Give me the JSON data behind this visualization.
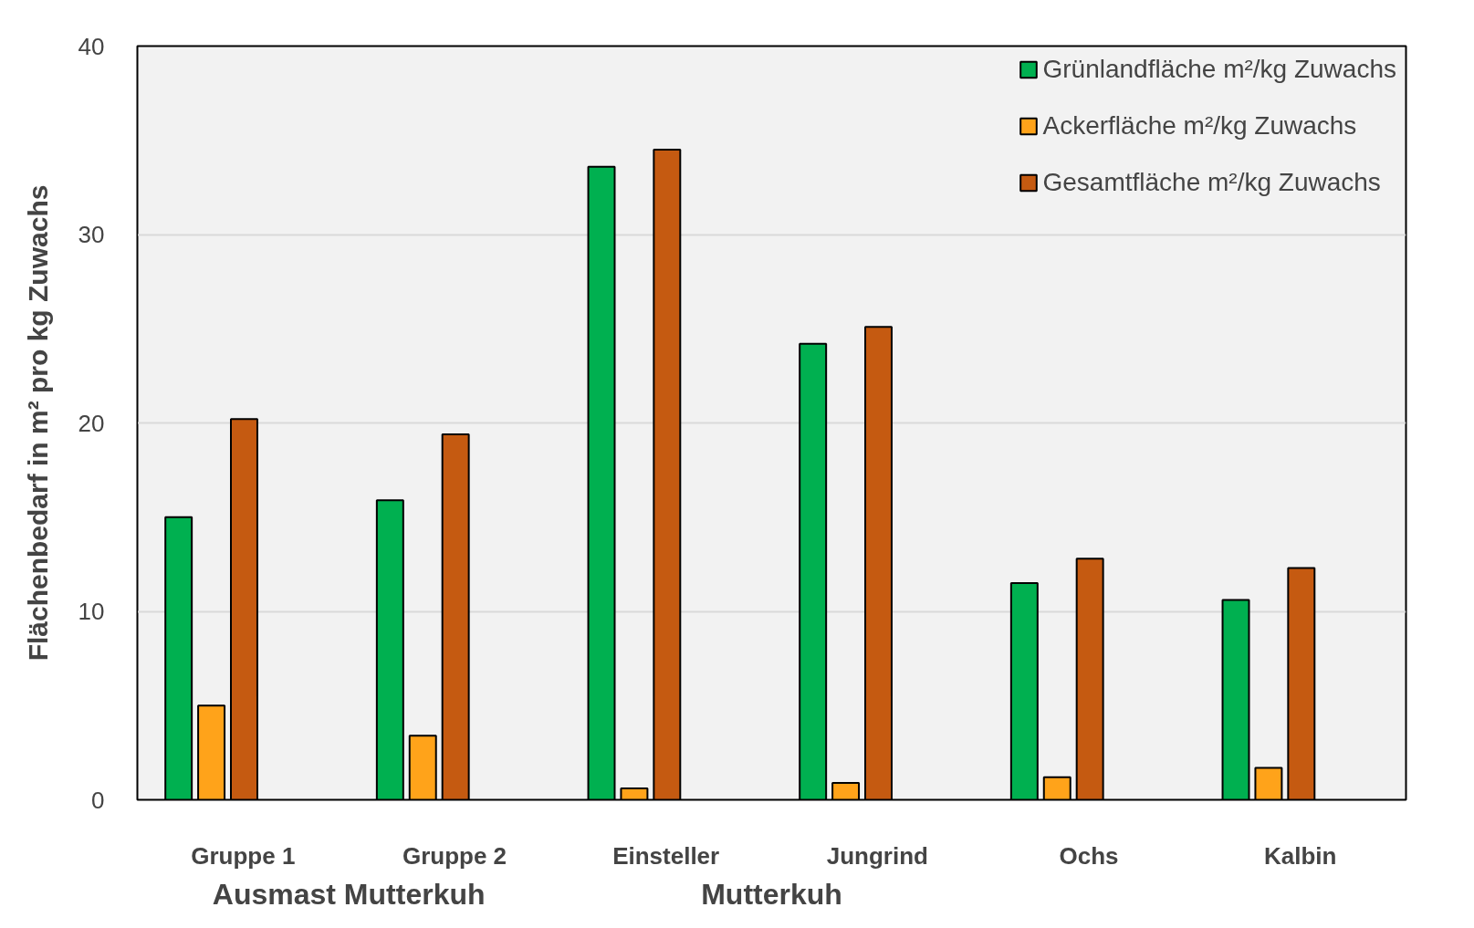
{
  "chart_data": {
    "type": "bar",
    "ylabel": "Flächenbedarf in m² pro kg Zuwachs",
    "categories": [
      "Gruppe 1",
      "Gruppe 2",
      "Einsteller",
      "Jungrind",
      "Ochs",
      "Kalbin"
    ],
    "series": [
      {
        "name": "Grünlandfläche m²/kg Zuwachs",
        "color": "#00b050",
        "values": [
          15.0,
          15.9,
          33.6,
          24.2,
          11.5,
          10.6
        ]
      },
      {
        "name": "Ackerfläche m²/kg Zuwachs",
        "color": "#ffa31a",
        "values": [
          5.0,
          3.4,
          0.6,
          0.9,
          1.2,
          1.7
        ]
      },
      {
        "name": "Gesamtfläche m²/kg Zuwachs",
        "color": "#c55a11",
        "values": [
          20.2,
          19.4,
          34.5,
          25.1,
          12.8,
          12.3
        ]
      }
    ],
    "annotations": [
      "Ausmast Mutterkuh",
      "Mutterkuh"
    ],
    "ylim": [
      0,
      40
    ],
    "yticks": [
      0,
      10,
      20,
      30,
      40
    ],
    "grid": "y",
    "legend": "top right"
  }
}
